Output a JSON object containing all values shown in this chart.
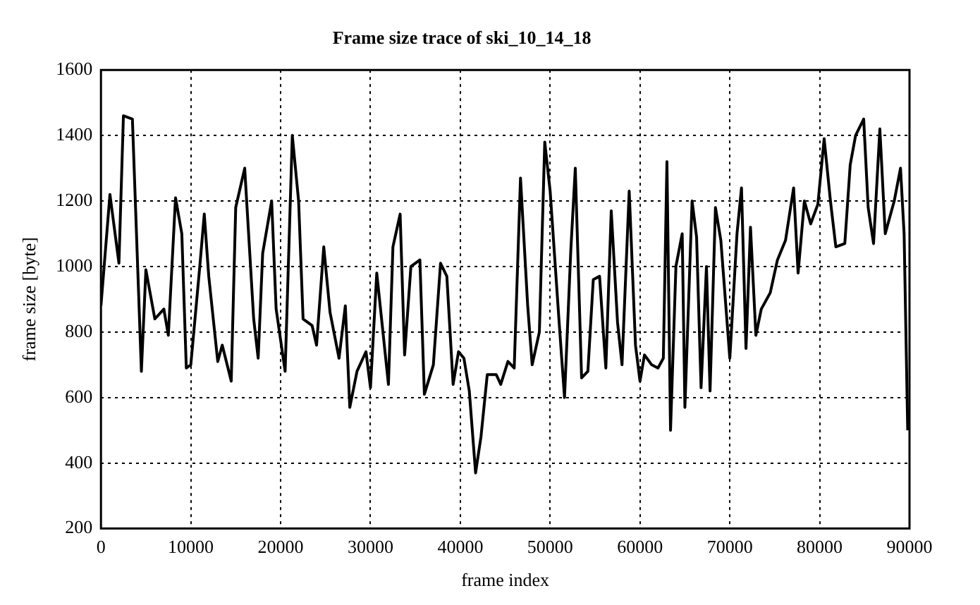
{
  "chart_data": {
    "type": "line",
    "title": "Frame size trace of ski_10_14_18",
    "xlabel": "frame index",
    "ylabel": "frame size [byte]",
    "x": [
      0,
      1000,
      2000,
      2500,
      3500,
      4500,
      5000,
      6000,
      7000,
      7500,
      8300,
      9000,
      9500,
      10000,
      11000,
      11500,
      12000,
      13000,
      13500,
      14500,
      15000,
      16000,
      17000,
      17500,
      18000,
      19000,
      19500,
      20500,
      21300,
      22000,
      22500,
      23500,
      24000,
      24800,
      25500,
      26500,
      27200,
      27700,
      28500,
      29500,
      30000,
      30700,
      32000,
      32500,
      33300,
      33800,
      34500,
      35500,
      36000,
      37000,
      37800,
      38500,
      39200,
      39800,
      40400,
      41000,
      41700,
      42300,
      43000,
      44000,
      44500,
      45300,
      46000,
      46700,
      47500,
      48000,
      48800,
      49400,
      50000,
      51000,
      51600,
      52300,
      52800,
      53500,
      54200,
      54800,
      55500,
      56200,
      56800,
      57500,
      58000,
      58800,
      59500,
      60000,
      60500,
      61300,
      62000,
      62600,
      63000,
      63400,
      64000,
      64700,
      65000,
      65800,
      66300,
      66800,
      67400,
      67800,
      68400,
      69000,
      70000,
      70800,
      71300,
      71800,
      72300,
      72900,
      73500,
      74500,
      75300,
      76200,
      77100,
      77600,
      78300,
      79000,
      79800,
      80500,
      81200,
      81800,
      82800,
      83400,
      84000,
      84900,
      85400,
      86000,
      86700,
      87300,
      88300,
      89000,
      89400,
      89800
    ],
    "series": [
      {
        "color": "#000000",
        "values": [
          880,
          1220,
          1010,
          1460,
          1450,
          680,
          990,
          840,
          870,
          790,
          1210,
          1100,
          690,
          700,
          1000,
          1160,
          970,
          710,
          760,
          650,
          1180,
          1300,
          840,
          720,
          1040,
          1200,
          870,
          680,
          1400,
          1200,
          840,
          820,
          760,
          1060,
          860,
          720,
          880,
          570,
          680,
          740,
          630,
          980,
          640,
          1060,
          1160,
          730,
          1000,
          1020,
          610,
          700,
          1010,
          970,
          640,
          740,
          720,
          620,
          370,
          480,
          670,
          670,
          640,
          710,
          690,
          1270,
          880,
          700,
          800,
          1380,
          1230,
          830,
          600,
          1050,
          1300,
          660,
          680,
          960,
          970,
          690,
          1170,
          830,
          700,
          1230,
          760,
          650,
          730,
          700,
          690,
          720,
          1320,
          500,
          1000,
          1100,
          570,
          1200,
          1090,
          630,
          1000,
          620,
          1180,
          1080,
          720,
          1100,
          1240,
          750,
          1120,
          790,
          870,
          920,
          1020,
          1080,
          1240,
          980,
          1200,
          1130,
          1190,
          1390,
          1200,
          1060,
          1070,
          1310,
          1400,
          1450,
          1180,
          1070,
          1420,
          1100,
          1200,
          1300,
          1100,
          500
        ]
      }
    ],
    "xlim": [
      0,
      90000
    ],
    "xticks": [
      0,
      10000,
      20000,
      30000,
      40000,
      50000,
      60000,
      70000,
      80000,
      90000
    ],
    "ylim": [
      200,
      1600
    ],
    "yticks": [
      200,
      400,
      600,
      800,
      1000,
      1200,
      1400,
      1600
    ],
    "grid": true,
    "legend": false,
    "marker": "none",
    "line_style": "solid"
  }
}
